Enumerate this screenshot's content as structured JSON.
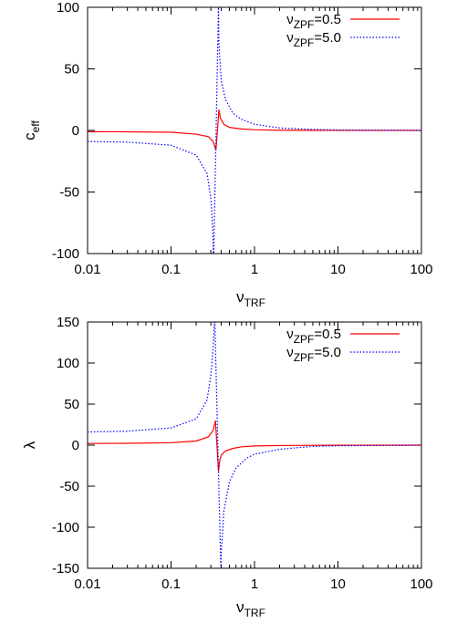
{
  "chart_data": [
    {
      "type": "line",
      "ylabel": "c",
      "ylabel_sub": "eff",
      "xlabel": "ν",
      "xlabel_sub": "TRF",
      "xscale": "log",
      "xlim": [
        0.01,
        100
      ],
      "ylim": [
        -100,
        100
      ],
      "xticks": [
        0.01,
        0.1,
        1,
        10,
        100
      ],
      "xtick_labels": [
        "0.01",
        "0.1",
        "1",
        "10",
        "100"
      ],
      "yticks": [
        -100,
        -50,
        0,
        50,
        100
      ],
      "ytick_labels": [
        "-100",
        "-50",
        "0",
        "50",
        "100"
      ],
      "legend_position": "top-right",
      "series": [
        {
          "name": "ν",
          "name_sub": "ZPF",
          "name_suffix": "=0.5",
          "color": "#ff0000",
          "style": "solid",
          "x": [
            0.01,
            0.03,
            0.1,
            0.2,
            0.28,
            0.32,
            0.345,
            0.36,
            0.375,
            0.39,
            0.43,
            0.5,
            0.7,
            1,
            2,
            5,
            10,
            100
          ],
          "y": [
            -1,
            -1.1,
            -1.5,
            -3,
            -5,
            -9,
            -16,
            0,
            17,
            10,
            5,
            2.5,
            1.2,
            0.6,
            0.2,
            0.1,
            0.05,
            0
          ]
        },
        {
          "name": "ν",
          "name_sub": "ZPF",
          "name_suffix": "=5.0",
          "color": "#0000ff",
          "style": "dotted",
          "x": [
            0.01,
            0.03,
            0.1,
            0.2,
            0.27,
            0.3,
            0.315,
            0.322,
            0.325,
            0.37,
            0.375,
            0.4,
            0.45,
            0.55,
            0.7,
            1,
            2,
            5,
            10,
            100
          ],
          "y": [
            -9,
            -9.5,
            -12,
            -20,
            -35,
            -55,
            -80,
            -100,
            -100,
            100,
            70,
            40,
            25,
            14,
            9,
            5,
            2,
            0.8,
            0.4,
            0.05
          ]
        }
      ]
    },
    {
      "type": "line",
      "ylabel": "λ",
      "ylabel_sub": "",
      "xlabel": "ν",
      "xlabel_sub": "TRF",
      "xscale": "log",
      "xlim": [
        0.01,
        100
      ],
      "ylim": [
        -150,
        150
      ],
      "xticks": [
        0.01,
        0.1,
        1,
        10,
        100
      ],
      "xtick_labels": [
        "0.01",
        "0.1",
        "1",
        "10",
        "100"
      ],
      "yticks": [
        -150,
        -100,
        -50,
        0,
        50,
        100,
        150
      ],
      "ytick_labels": [
        "-150",
        "-100",
        "-50",
        "0",
        "50",
        "100",
        "150"
      ],
      "legend_position": "top-right",
      "series": [
        {
          "name": "ν",
          "name_sub": "ZPF",
          "name_suffix": "=0.5",
          "color": "#ff0000",
          "style": "solid",
          "x": [
            0.01,
            0.03,
            0.1,
            0.2,
            0.28,
            0.32,
            0.34,
            0.355,
            0.37,
            0.385,
            0.4,
            0.45,
            0.55,
            0.7,
            1,
            2,
            5,
            10,
            100
          ],
          "y": [
            2,
            2.2,
            3,
            5,
            10,
            18,
            30,
            0,
            -32,
            -18,
            -12,
            -7,
            -4,
            -2,
            -1,
            -0.5,
            -0.2,
            -0.1,
            0
          ]
        },
        {
          "name": "ν",
          "name_sub": "ZPF",
          "name_suffix": "=5.0",
          "color": "#0000ff",
          "style": "dotted",
          "x": [
            0.01,
            0.03,
            0.1,
            0.2,
            0.27,
            0.3,
            0.32,
            0.33,
            0.335,
            0.395,
            0.4,
            0.43,
            0.5,
            0.6,
            0.8,
            1,
            2,
            5,
            10,
            100
          ],
          "y": [
            16,
            17,
            21,
            32,
            55,
            85,
            120,
            150,
            150,
            -150,
            -130,
            -80,
            -45,
            -28,
            -16,
            -11,
            -5,
            -1.5,
            -0.8,
            -0.1
          ]
        }
      ]
    }
  ]
}
